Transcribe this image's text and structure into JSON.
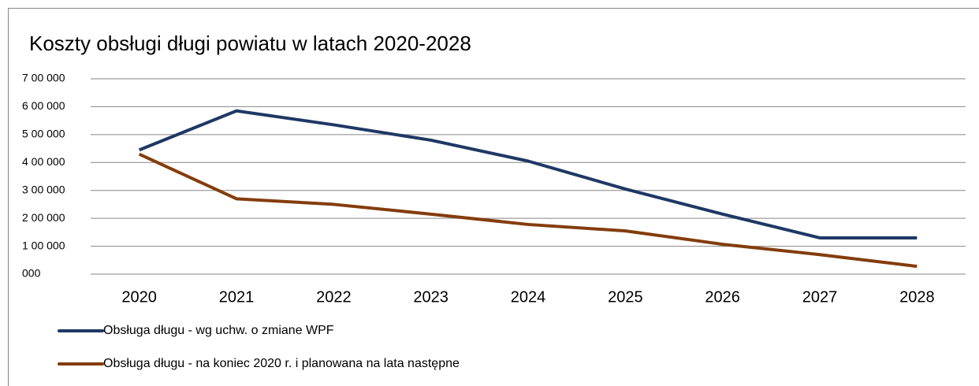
{
  "chart_data": {
    "type": "line",
    "title": "Koszty obsługi długi powiatu w latach 2020-2028",
    "categories": [
      "2020",
      "2021",
      "2022",
      "2023",
      "2024",
      "2025",
      "2026",
      "2027",
      "2028"
    ],
    "series": [
      {
        "name": "Obsługa długu - wg uchw. o zmiane WPF",
        "color": "#1f3864",
        "values": [
          445000,
          585000,
          535000,
          480000,
          405000,
          305000,
          215000,
          130000,
          130000
        ]
      },
      {
        "name": "Obsługa długu - na koniec 2020 r. i planowana na lata następne",
        "color": "#843c0c",
        "values": [
          430000,
          270000,
          250000,
          215000,
          178000,
          155000,
          107000,
          70000,
          28000
        ]
      }
    ],
    "ylim": [
      0,
      700000
    ],
    "yticks": [
      {
        "value": 0,
        "label": "000"
      },
      {
        "value": 100000,
        "label": "1 00 000"
      },
      {
        "value": 200000,
        "label": "2 00 000"
      },
      {
        "value": 300000,
        "label": "3 00 000"
      },
      {
        "value": 400000,
        "label": "4 00 000"
      },
      {
        "value": 500000,
        "label": "5 00 000"
      },
      {
        "value": 600000,
        "label": "6 00 000"
      },
      {
        "value": 700000,
        "label": "7 00 000"
      }
    ],
    "grid": true
  }
}
